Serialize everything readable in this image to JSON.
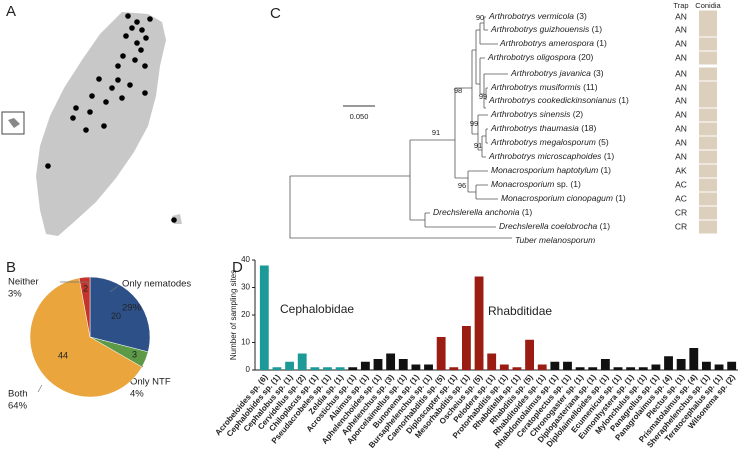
{
  "panel_labels": [
    "A",
    "B",
    "C",
    "D"
  ],
  "tree": {
    "headers": [
      "Trap",
      "Conidia"
    ],
    "scale_label": "0.050",
    "bootstrap": [
      "90",
      "98",
      "99",
      "99",
      "91",
      "91",
      "96"
    ],
    "taxa": [
      {
        "name": "Arthrobotrys vermicola",
        "count": "(3)",
        "trap": "AN"
      },
      {
        "name": "Arthrobotrys guizhouensis",
        "count": "(1)",
        "trap": "AN"
      },
      {
        "name": "Arthrobotrys amerospora",
        "count": "(1)",
        "trap": "AN"
      },
      {
        "name": "Arthrobotrys oligospora",
        "count": "(20)",
        "trap": "AN"
      },
      {
        "name": "Arthrobotrys javanica",
        "count": "(3)",
        "trap": "AN"
      },
      {
        "name": "Arthrobotrys musiformis",
        "count": "(11)",
        "trap": "AN"
      },
      {
        "name": "Arthrobotrys cookedickinsonianus",
        "count": "(1)",
        "trap": "AN"
      },
      {
        "name": "Arthrobotrys sinensis",
        "count": "(2)",
        "trap": "AN"
      },
      {
        "name": "Arthrobotrys thaumasia",
        "count": "(18)",
        "trap": "AN"
      },
      {
        "name": "Arthrobotrys megalosporum",
        "count": "(5)",
        "trap": "AN"
      },
      {
        "name": "Arthrobotrys microscaphoides",
        "count": "(1)",
        "trap": "AN"
      },
      {
        "name": "Monacrosporium haptotylum",
        "count": "(1)",
        "trap": "AK"
      },
      {
        "name": "Monacrosporium",
        "count": "sp. (1)",
        "trap": "AC"
      },
      {
        "name": "Monacrosporium cionopagum",
        "count": "(1)",
        "trap": "AC"
      },
      {
        "name": "Drechslerella anchonia",
        "count": "(1)",
        "trap": "CR"
      },
      {
        "name": "Drechslerella coelobrocha",
        "count": "(1)",
        "trap": "CR"
      },
      {
        "name": "Tuber melanosporum"
      }
    ]
  },
  "chart_data": [
    {
      "type": "pie",
      "categories": [
        "Only nematodes",
        "Only NTF",
        "Both",
        "Neither"
      ],
      "values": [
        20,
        3,
        44,
        2
      ],
      "percent_labels": [
        "29%",
        "4%",
        "64%",
        "3%"
      ],
      "colors": [
        "#2d5088",
        "#5c9a47",
        "#eaa53c",
        "#c4342c"
      ]
    },
    {
      "type": "bar",
      "y_label": "Number of sampling sites",
      "annotations": [
        {
          "text": "Cephalobidae",
          "color": "#1c9a98"
        },
        {
          "text": "Rhabditidae",
          "color": "#9b1c12"
        }
      ],
      "categories": [
        "Acrobeloides sp. (6)",
        "Cephalobides sp. (1)",
        "Cephalobus sp. (1)",
        "Cervidellus sp. (2)",
        "Chiloplacus sp. (1)",
        "Pseudacrobeles sp. (1)",
        "Zeldia sp. (1)",
        "Acrostichus sp. (1)",
        "Alaimus sp. (1)",
        "Aphelenchoides sp. (1)",
        "Aphelenchus sp. (3)",
        "Aporcelaimellus sp. (1)",
        "Bunonema sp. (1)",
        "Bursaphelenchus sp. (1)",
        "Caenorhabditis sp. (5)",
        "Diploscapter sp. (1)",
        "Mesorhabditis sp. (1)",
        "Oscheius sp. (5)",
        "Pelodera sp. (1)",
        "Protorhabditis sp. (1)",
        "Rhabditella sp. (1)",
        "Rhabditis sp. (5)",
        "Rhabditoides sp. (1)",
        "Rhabdontolaimus sp. (1)",
        "Ceratoplectus sp. (1)",
        "Chronogaster sp. (1)",
        "Diplogasteriana sp. (1)",
        "Diplolaimelloides sp. (1)",
        "Ecumenicus sp. (1)",
        "Eumonhystera sp. (1)",
        "Mylonchulus sp. (1)",
        "Panagrellus sp. (1)",
        "Panagrolaimus sp. (4)",
        "Plectus sp. (1)",
        "Prismatolaimus sp. (4)",
        "Sheraphelenchus sp. (1)",
        "Teratocephalus sp. (1)",
        "Wilsonema sp. (2)"
      ],
      "values": [
        38,
        1,
        3,
        6,
        1,
        1,
        1,
        1,
        3,
        4,
        6,
        4,
        2,
        2,
        12,
        1,
        16,
        34,
        6,
        2,
        1,
        11,
        2,
        3,
        3,
        1,
        1,
        4,
        1,
        1,
        1,
        2,
        5,
        4,
        8,
        3,
        2,
        3
      ],
      "colors": [
        "#1c9a98",
        "#1c9a98",
        "#1c9a98",
        "#1c9a98",
        "#1c9a98",
        "#1c9a98",
        "#1c9a98",
        "#111111",
        "#111111",
        "#111111",
        "#111111",
        "#111111",
        "#111111",
        "#111111",
        "#9b1c12",
        "#9b1c12",
        "#9b1c12",
        "#9b1c12",
        "#9b1c12",
        "#9b1c12",
        "#9b1c12",
        "#9b1c12",
        "#9b1c12",
        "#111111",
        "#111111",
        "#111111",
        "#111111",
        "#111111",
        "#111111",
        "#111111",
        "#111111",
        "#111111",
        "#111111",
        "#111111",
        "#111111",
        "#111111",
        "#111111",
        "#111111"
      ],
      "ylim": [
        0,
        40
      ],
      "yticks": [
        0,
        10,
        20,
        30,
        40
      ]
    }
  ]
}
